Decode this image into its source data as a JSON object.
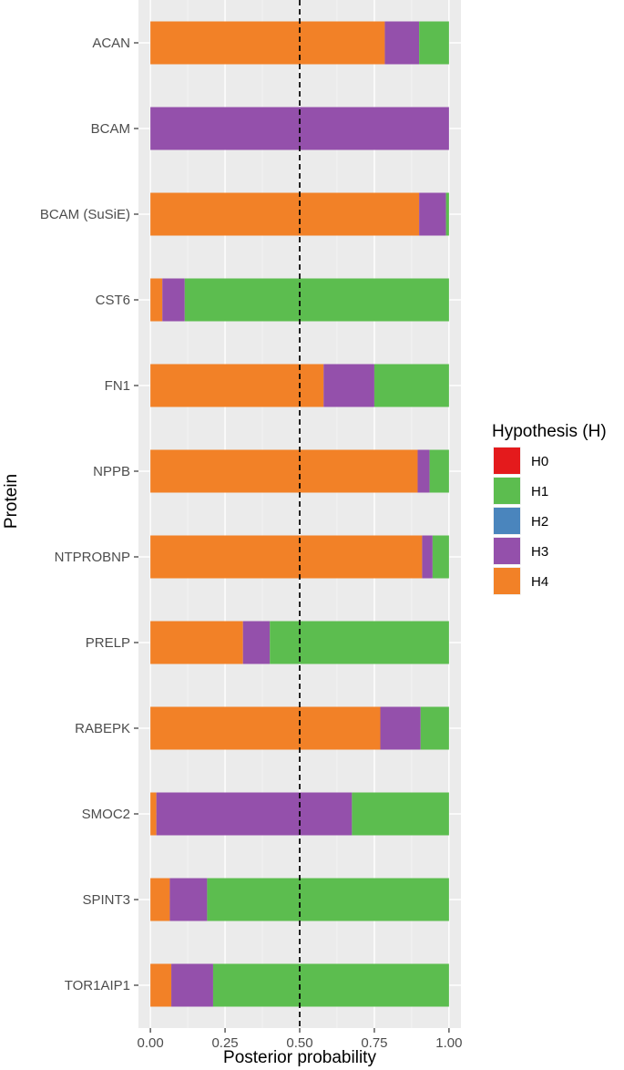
{
  "chart_data": {
    "type": "bar",
    "orientation": "horizontal",
    "stacked": true,
    "title": "",
    "xlabel": "Posterior probability",
    "ylabel": "Protein",
    "xlim": [
      -0.04,
      1.04
    ],
    "xticks": [
      0.0,
      0.25,
      0.5,
      0.75,
      1.0
    ],
    "xtick_labels": [
      "0.00",
      "0.25",
      "0.50",
      "0.75",
      "1.00"
    ],
    "grid": true,
    "reference_line": {
      "x": 0.5,
      "style": "dashed",
      "color": "#000000"
    },
    "categories": [
      "ACAN",
      "BCAM",
      "BCAM (SuSiE)",
      "CST6",
      "FN1",
      "NPPB",
      "NTPROBNP",
      "PRELP",
      "RABEPK",
      "SMOC2",
      "SPINT3",
      "TOR1AIP1"
    ],
    "stack_order": [
      "H4",
      "H3",
      "H2",
      "H1",
      "H0"
    ],
    "series": [
      {
        "name": "H0",
        "color": "#E41A1C",
        "values": [
          0,
          0,
          0,
          0,
          0,
          0,
          0,
          0,
          0,
          0,
          0,
          0
        ]
      },
      {
        "name": "H1",
        "color": "#5CBD4F",
        "values": [
          0.1,
          0,
          0.01,
          0.885,
          0.25,
          0.065,
          0.055,
          0.6,
          0.095,
          0.325,
          0.81,
          0.79
        ]
      },
      {
        "name": "H2",
        "color": "#4A85BD",
        "values": [
          0,
          0,
          0,
          0,
          0,
          0,
          0,
          0,
          0,
          0,
          0,
          0
        ]
      },
      {
        "name": "H3",
        "color": "#9450AB",
        "values": [
          0.115,
          1.0,
          0.09,
          0.075,
          0.17,
          0.04,
          0.035,
          0.09,
          0.135,
          0.655,
          0.125,
          0.14
        ]
      },
      {
        "name": "H4",
        "color": "#F28127",
        "values": [
          0.785,
          0,
          0.9,
          0.04,
          0.58,
          0.895,
          0.91,
          0.31,
          0.77,
          0.02,
          0.065,
          0.07
        ]
      }
    ],
    "legend": {
      "title": "Hypothesis (H)",
      "position": "right",
      "items": [
        "H0",
        "H1",
        "H2",
        "H3",
        "H4"
      ]
    }
  }
}
